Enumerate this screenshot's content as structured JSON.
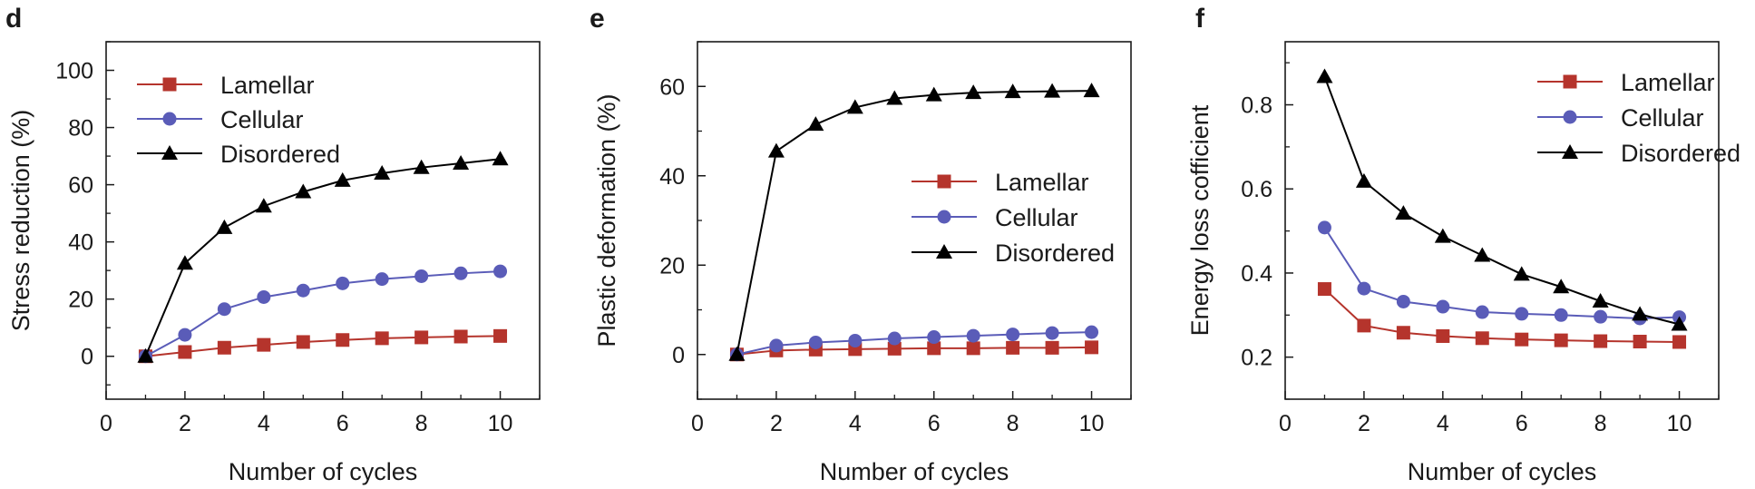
{
  "chart_data": [
    {
      "panel": "d",
      "type": "line",
      "xlabel": "Number of cycles",
      "ylabel": "Stress reduction (%)",
      "xlim": [
        0,
        11
      ],
      "ylim": [
        -15,
        110
      ],
      "xticks": [
        0,
        2,
        4,
        6,
        8,
        10
      ],
      "yticks": [
        0,
        20,
        40,
        60,
        80,
        100
      ],
      "legend_position": "top-left",
      "x": [
        1,
        2,
        3,
        4,
        5,
        6,
        7,
        8,
        9,
        10
      ],
      "series": [
        {
          "name": "Lamellar",
          "color": "#b5342c",
          "marker": "square",
          "values": [
            0,
            1.5,
            3,
            4,
            5,
            5.7,
            6.3,
            6.6,
            6.9,
            7.1
          ]
        },
        {
          "name": "Cellular",
          "color": "#5a5cb8",
          "marker": "circle",
          "values": [
            0,
            7.5,
            16.5,
            20.7,
            23,
            25.5,
            27,
            28,
            29,
            29.7
          ]
        },
        {
          "name": "Disordered",
          "color": "#000000",
          "marker": "triangle",
          "values": [
            0,
            32.5,
            45,
            52.5,
            57.5,
            61.5,
            64,
            66,
            67.5,
            69
          ]
        }
      ]
    },
    {
      "panel": "e",
      "type": "line",
      "xlabel": "Number of cycles",
      "ylabel": "Plastic deformation (%)",
      "xlim": [
        0,
        11
      ],
      "ylim": [
        -10,
        70
      ],
      "xticks": [
        0,
        2,
        4,
        6,
        8,
        10
      ],
      "yticks": [
        0,
        20,
        40,
        60
      ],
      "legend_position": "center-right",
      "x": [
        1,
        2,
        3,
        4,
        5,
        6,
        7,
        8,
        9,
        10
      ],
      "series": [
        {
          "name": "Lamellar",
          "color": "#b5342c",
          "marker": "square",
          "values": [
            0,
            0.9,
            1.1,
            1.2,
            1.3,
            1.4,
            1.4,
            1.5,
            1.5,
            1.6
          ]
        },
        {
          "name": "Cellular",
          "color": "#5a5cb8",
          "marker": "circle",
          "values": [
            0,
            2,
            2.7,
            3.1,
            3.6,
            3.9,
            4.2,
            4.5,
            4.8,
            5.0
          ]
        },
        {
          "name": "Disordered",
          "color": "#000000",
          "marker": "triangle",
          "values": [
            0,
            45.5,
            51.5,
            55.3,
            57.3,
            58.1,
            58.6,
            58.8,
            58.9,
            59.0
          ]
        }
      ]
    },
    {
      "panel": "f",
      "type": "line",
      "xlabel": "Number of cycles",
      "ylabel": "Energy loss cofficient",
      "xlim": [
        0,
        11
      ],
      "ylim": [
        0.1,
        0.95
      ],
      "xticks": [
        0,
        2,
        4,
        6,
        8,
        10
      ],
      "yticks": [
        0.2,
        0.4,
        0.6,
        0.8
      ],
      "legend_position": "top-right",
      "x": [
        1,
        2,
        3,
        4,
        5,
        6,
        7,
        8,
        9,
        10
      ],
      "series": [
        {
          "name": "Lamellar",
          "color": "#b5342c",
          "marker": "square",
          "values": [
            0.362,
            0.275,
            0.258,
            0.25,
            0.245,
            0.242,
            0.24,
            0.238,
            0.237,
            0.236
          ]
        },
        {
          "name": "Cellular",
          "color": "#5a5cb8",
          "marker": "circle",
          "values": [
            0.508,
            0.363,
            0.332,
            0.32,
            0.307,
            0.303,
            0.3,
            0.296,
            0.292,
            0.295
          ]
        },
        {
          "name": "Disordered",
          "color": "#000000",
          "marker": "triangle",
          "values": [
            0.867,
            0.618,
            0.542,
            0.487,
            0.442,
            0.397,
            0.367,
            0.333,
            0.302,
            0.278
          ]
        }
      ]
    }
  ]
}
